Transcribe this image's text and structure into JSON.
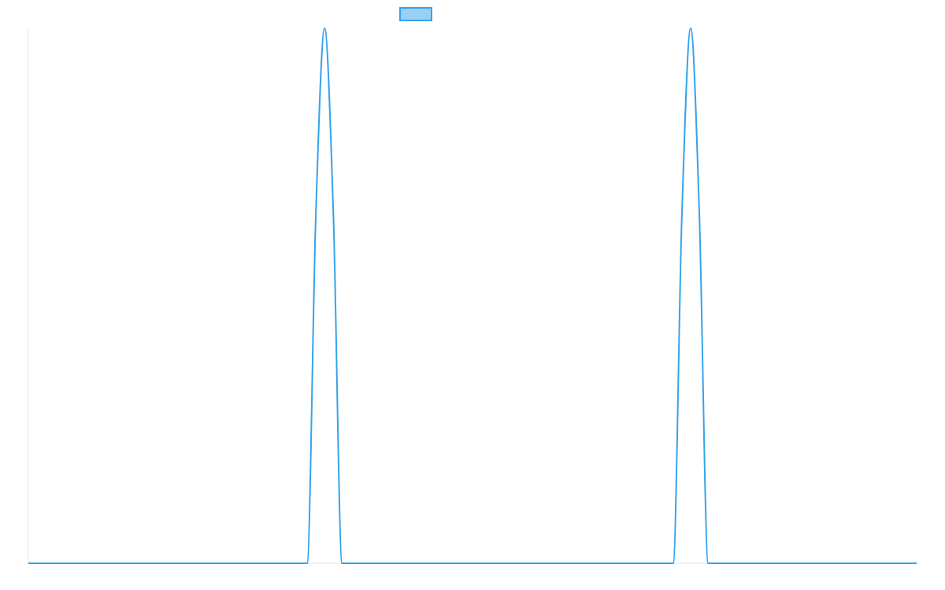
{
  "chart_data": {
    "type": "line",
    "title": "",
    "xlabel": "",
    "ylabel": "",
    "legend": {
      "placement": "top-center",
      "entries": [
        {
          "name": "",
          "fill": "#9ad0f5",
          "stroke": "#36a2eb"
        }
      ]
    },
    "grid": false,
    "colors": {
      "line": "#36a2eb",
      "legend_fill": "#9ad0f5",
      "axis": "#e5e5e5"
    },
    "xlim": [
      0,
      1
    ],
    "ylim": [
      0,
      1
    ],
    "series": [
      {
        "name": "",
        "x": [
          0,
          0.3138,
          0.3236,
          0.3335,
          0.3434,
          0.3532,
          0.7259,
          0.7357,
          0.7456,
          0.7554,
          0.7653,
          1
        ],
        "y": [
          0,
          0,
          0.65,
          1,
          0.65,
          0,
          0,
          0.65,
          1,
          0.65,
          0,
          0
        ]
      }
    ]
  }
}
